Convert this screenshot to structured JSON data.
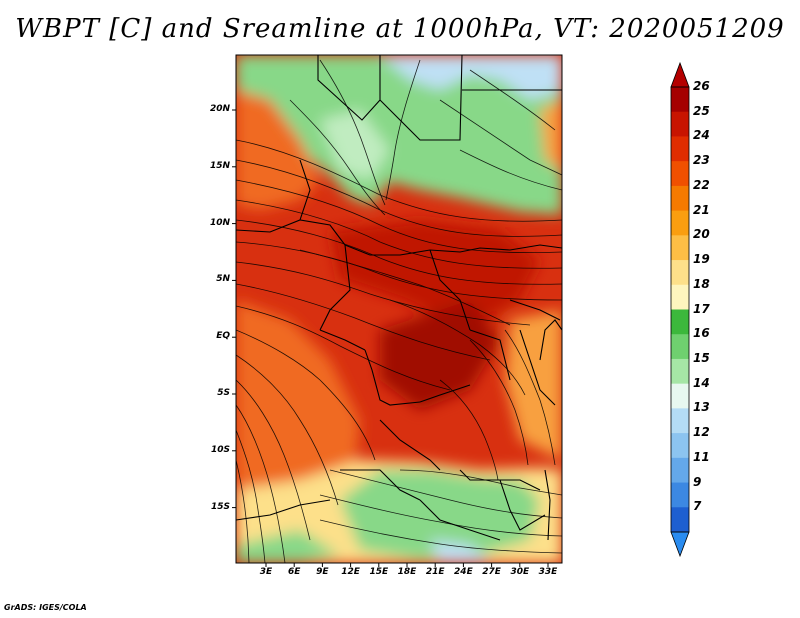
{
  "title": "WBPT [C] and Sreamline at 1000hPa, VT: 2020051209",
  "credit": "GrADS: IGES/COLA",
  "axes": {
    "y_labels": [
      "20N",
      "15N",
      "10N",
      "5N",
      "EQ",
      "5S",
      "10S",
      "15S"
    ],
    "x_labels": [
      "3E",
      "6E",
      "9E",
      "12E",
      "15E",
      "18E",
      "21E",
      "24E",
      "27E",
      "30E",
      "33E"
    ]
  },
  "colorbar": {
    "labels": [
      "26",
      "25",
      "24",
      "23",
      "22",
      "21",
      "20",
      "19",
      "18",
      "17",
      "16",
      "15",
      "14",
      "13",
      "12",
      "11",
      "9",
      "7"
    ],
    "colors": [
      "#a50000",
      "#c81400",
      "#e02d00",
      "#f05000",
      "#f57a00",
      "#fa9e10",
      "#fdbe45",
      "#fde08a",
      "#fef5be",
      "#3cb83c",
      "#6fd06f",
      "#a6e6a6",
      "#e8f8f0",
      "#b4dcf5",
      "#8cc4f0",
      "#64a8ea",
      "#3c88e2",
      "#1e5fd0"
    ],
    "top_cap_color": "#b40000",
    "bottom_cap_color": "#2a8cf0"
  },
  "map_colors": {
    "warmest": "#c01800",
    "hot": "#d83010",
    "warm": "#f06a20",
    "mild": "#f8a040",
    "cool_yellow": "#fde08a",
    "green_dark": "#44bb44",
    "green": "#88d888",
    "green_light": "#c0ecc0",
    "pale_blue": "#bfe0f5",
    "light_blue": "#e4f4fa"
  }
}
